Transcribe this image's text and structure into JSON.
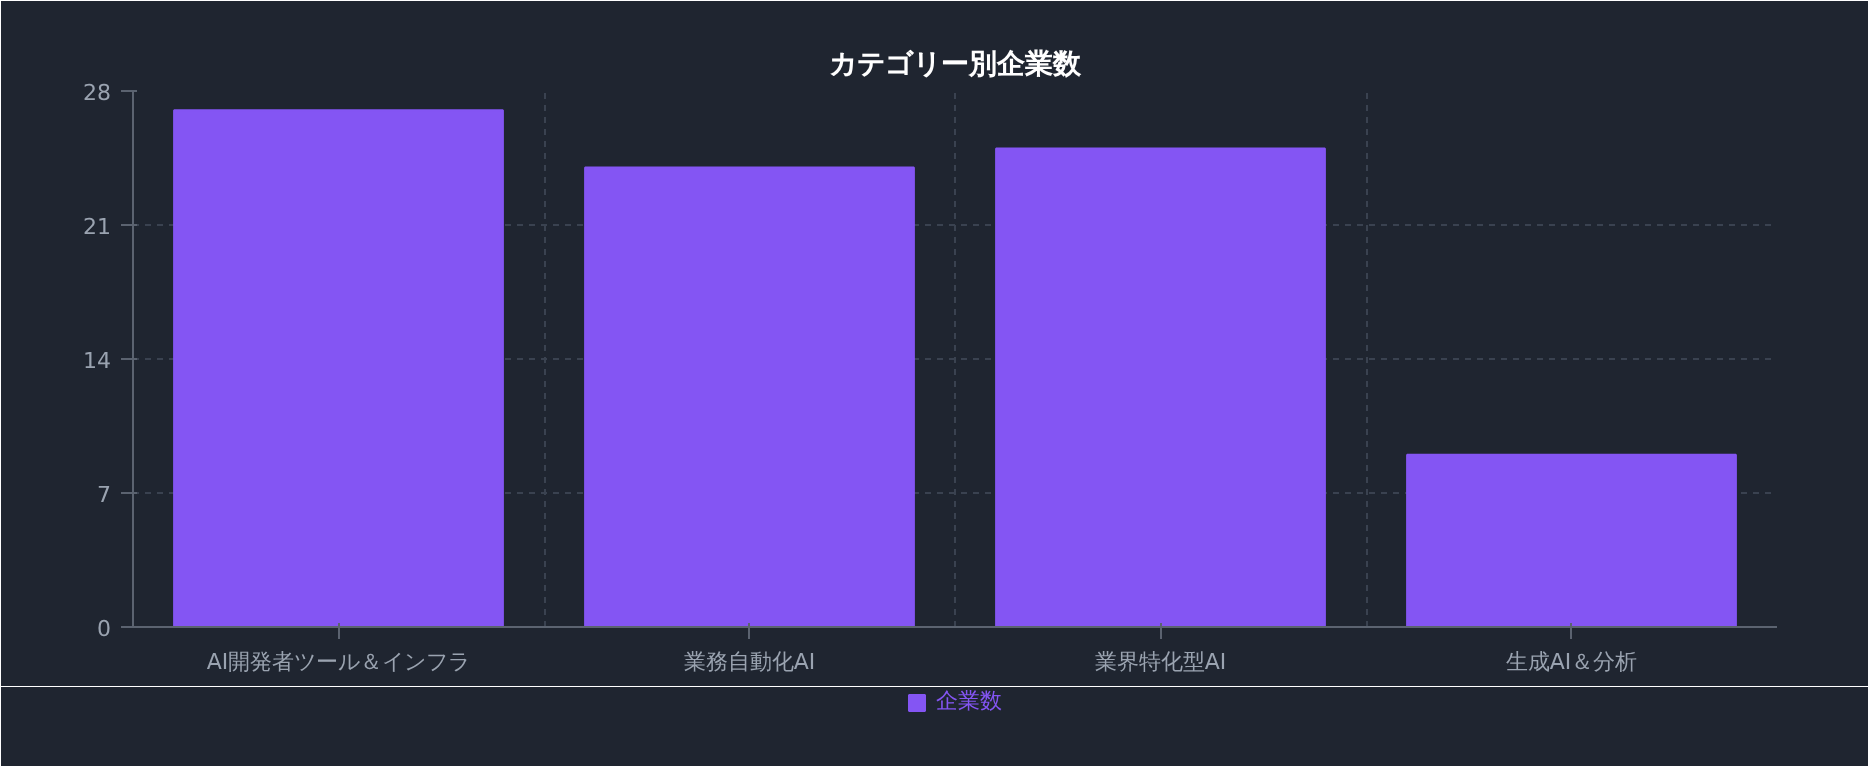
{
  "chart_data": {
    "type": "bar",
    "title": "カテゴリー別企業数",
    "categories": [
      "AI開発者ツール＆インフラ",
      "業務自動化AI",
      "業界特化型AI",
      "生成AI＆分析"
    ],
    "series": [
      {
        "name": "企業数",
        "color": "#8455f3",
        "values": [
          27,
          24,
          25,
          9
        ]
      }
    ],
    "ylim": [
      0,
      28
    ],
    "yticks": [
      0,
      7,
      14,
      21,
      28
    ],
    "grid": true,
    "legend": "bottom"
  }
}
